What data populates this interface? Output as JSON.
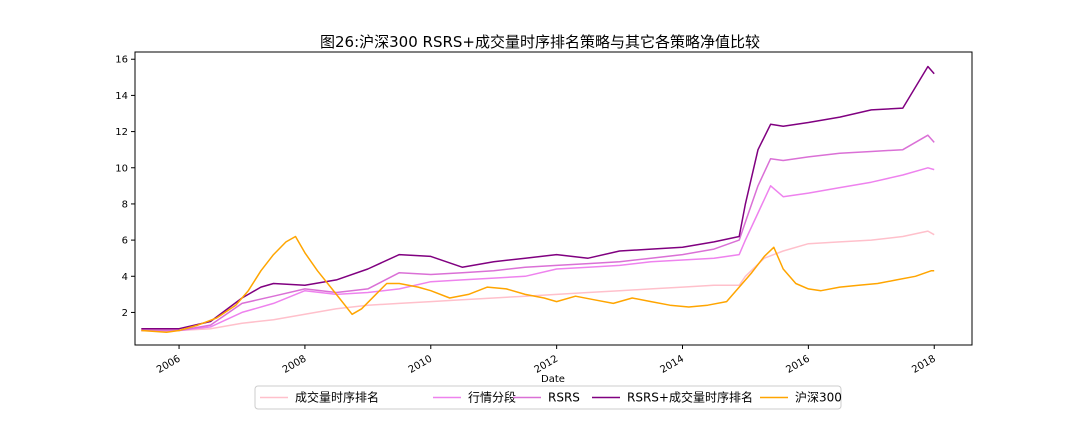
{
  "chart_data": {
    "type": "line",
    "title": "图26:沪深300 RSRS+成交量时序排名策略与其它各策略净值比较",
    "xlabel": "Date",
    "ylabel": "",
    "xlim": [
      2005.3,
      2018.6
    ],
    "ylim": [
      0.2,
      16.4
    ],
    "x_ticks": [
      2006,
      2008,
      2010,
      2012,
      2014,
      2016,
      2018
    ],
    "y_ticks": [
      2,
      4,
      6,
      8,
      10,
      12,
      14,
      16
    ],
    "grid": false,
    "legend_position": "bottom-center",
    "series": [
      {
        "name": "成交量时序排名",
        "color": "#ffc0cb",
        "x": [
          2005.4,
          2006.0,
          2006.5,
          2007.0,
          2007.5,
          2008.0,
          2008.5,
          2009.0,
          2009.5,
          2010.0,
          2010.5,
          2011.0,
          2011.5,
          2012.0,
          2012.5,
          2013.0,
          2013.5,
          2014.0,
          2014.5,
          2014.9,
          2015.0,
          2015.3,
          2015.6,
          2016.0,
          2016.5,
          2017.0,
          2017.5,
          2017.9,
          2018.0
        ],
        "y": [
          1.0,
          1.0,
          1.1,
          1.4,
          1.6,
          1.9,
          2.2,
          2.4,
          2.5,
          2.6,
          2.7,
          2.8,
          2.9,
          3.0,
          3.1,
          3.2,
          3.3,
          3.4,
          3.5,
          3.5,
          4.0,
          5.0,
          5.4,
          5.8,
          5.9,
          6.0,
          6.2,
          6.5,
          6.3
        ]
      },
      {
        "name": "行情分段",
        "color": "#ee82ee",
        "x": [
          2005.4,
          2006.0,
          2006.5,
          2007.0,
          2007.5,
          2008.0,
          2008.5,
          2009.0,
          2009.5,
          2010.0,
          2010.5,
          2011.0,
          2011.5,
          2012.0,
          2012.5,
          2013.0,
          2013.5,
          2014.0,
          2014.5,
          2014.9,
          2015.0,
          2015.2,
          2015.4,
          2015.6,
          2016.0,
          2016.5,
          2017.0,
          2017.5,
          2017.9,
          2018.0
        ],
        "y": [
          1.0,
          1.0,
          1.2,
          2.0,
          2.5,
          3.2,
          3.0,
          3.1,
          3.3,
          3.7,
          3.8,
          3.9,
          4.0,
          4.4,
          4.5,
          4.6,
          4.8,
          4.9,
          5.0,
          5.2,
          6.0,
          7.5,
          9.0,
          8.4,
          8.6,
          8.9,
          9.2,
          9.6,
          10.0,
          9.9
        ]
      },
      {
        "name": "RSRS",
        "color": "#da70d6",
        "x": [
          2005.4,
          2006.0,
          2006.5,
          2007.0,
          2007.5,
          2008.0,
          2008.5,
          2009.0,
          2009.5,
          2010.0,
          2010.5,
          2011.0,
          2011.5,
          2012.0,
          2012.5,
          2013.0,
          2013.5,
          2014.0,
          2014.5,
          2014.9,
          2015.0,
          2015.2,
          2015.4,
          2015.6,
          2016.0,
          2016.5,
          2017.0,
          2017.5,
          2017.9,
          2018.0
        ],
        "y": [
          1.0,
          1.0,
          1.3,
          2.5,
          2.9,
          3.3,
          3.1,
          3.3,
          4.2,
          4.1,
          4.2,
          4.3,
          4.5,
          4.6,
          4.7,
          4.8,
          5.0,
          5.2,
          5.5,
          6.0,
          7.0,
          9.0,
          10.5,
          10.4,
          10.6,
          10.8,
          10.9,
          11.0,
          11.8,
          11.4
        ]
      },
      {
        "name": "RSRS+成交量时序排名",
        "color": "#800080",
        "x": [
          2005.4,
          2006.0,
          2006.5,
          2007.0,
          2007.3,
          2007.5,
          2008.0,
          2008.5,
          2009.0,
          2009.5,
          2010.0,
          2010.5,
          2011.0,
          2011.5,
          2012.0,
          2012.5,
          2013.0,
          2013.5,
          2014.0,
          2014.5,
          2014.9,
          2015.0,
          2015.2,
          2015.4,
          2015.6,
          2016.0,
          2016.5,
          2017.0,
          2017.5,
          2017.9,
          2018.0
        ],
        "y": [
          1.1,
          1.1,
          1.5,
          2.8,
          3.4,
          3.6,
          3.5,
          3.8,
          4.4,
          5.2,
          5.1,
          4.5,
          4.8,
          5.0,
          5.2,
          5.0,
          5.4,
          5.5,
          5.6,
          5.9,
          6.2,
          8.0,
          11.0,
          12.4,
          12.3,
          12.5,
          12.8,
          13.2,
          13.3,
          15.6,
          15.2
        ]
      },
      {
        "name": "沪深300",
        "color": "#ffa500",
        "x": [
          2005.4,
          2005.8,
          2006.0,
          2006.3,
          2006.6,
          2006.9,
          2007.1,
          2007.3,
          2007.5,
          2007.7,
          2007.85,
          2008.0,
          2008.2,
          2008.5,
          2008.75,
          2008.9,
          2009.1,
          2009.3,
          2009.5,
          2009.8,
          2010.0,
          2010.3,
          2010.6,
          2010.9,
          2011.2,
          2011.5,
          2011.8,
          2012.0,
          2012.3,
          2012.6,
          2012.9,
          2013.2,
          2013.5,
          2013.8,
          2014.1,
          2014.4,
          2014.7,
          2014.9,
          2015.1,
          2015.3,
          2015.45,
          2015.6,
          2015.8,
          2016.0,
          2016.2,
          2016.5,
          2016.8,
          2017.1,
          2017.4,
          2017.7,
          2017.95,
          2018.0
        ],
        "y": [
          1.0,
          0.9,
          1.0,
          1.3,
          1.7,
          2.4,
          3.2,
          4.3,
          5.2,
          5.9,
          6.2,
          5.3,
          4.3,
          3.0,
          1.9,
          2.2,
          2.9,
          3.6,
          3.6,
          3.4,
          3.2,
          2.8,
          3.0,
          3.4,
          3.3,
          3.0,
          2.8,
          2.6,
          2.9,
          2.7,
          2.5,
          2.8,
          2.6,
          2.4,
          2.3,
          2.4,
          2.6,
          3.4,
          4.2,
          5.1,
          5.6,
          4.4,
          3.6,
          3.3,
          3.2,
          3.4,
          3.5,
          3.6,
          3.8,
          4.0,
          4.3,
          4.3
        ]
      }
    ]
  }
}
